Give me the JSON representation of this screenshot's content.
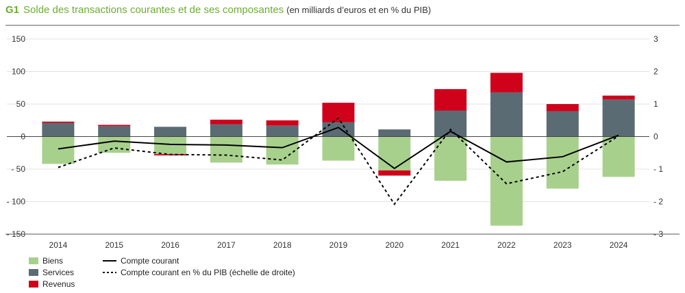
{
  "header": {
    "fig_num": "G1",
    "title": "Solde des transactions courantes et de ses composantes",
    "subtitle": "(en milliards d’euros et en % du PIB)"
  },
  "chart_data": {
    "type": "bar",
    "stacked": true,
    "categories": [
      "2014",
      "2015",
      "2016",
      "2017",
      "2018",
      "2019",
      "2020",
      "2021",
      "2022",
      "2023",
      "2024"
    ],
    "series": [
      {
        "name": "Biens",
        "color": "#a8d08d",
        "kind": "bar",
        "values": [
          -42,
          -25,
          -27,
          -40,
          -43,
          -37,
          -52,
          -68,
          -137,
          -80,
          -62
        ]
      },
      {
        "name": "Services",
        "color": "#5b6b73",
        "kind": "bar",
        "values": [
          21,
          16,
          15,
          19,
          17,
          22,
          11,
          40,
          68,
          39,
          57
        ]
      },
      {
        "name": "Revenus",
        "color": "#d0021b",
        "kind": "bar",
        "values": [
          2,
          2,
          -2,
          7,
          8,
          30,
          -8,
          33,
          30,
          11,
          6
        ]
      },
      {
        "name": "Compte courant",
        "color": "#000000",
        "kind": "line",
        "axis": "left",
        "values": [
          -19,
          -7,
          -12,
          -13,
          -17,
          14,
          -49,
          8,
          -39,
          -31,
          2
        ]
      },
      {
        "name": "Compte courant en % du PIB (échelle de droite)",
        "color": "#000000",
        "kind": "dashed-line",
        "axis": "right",
        "values": [
          -0.95,
          -0.35,
          -0.55,
          -0.57,
          -0.72,
          0.57,
          -2.08,
          0.22,
          -1.45,
          -1.08,
          0.02
        ]
      }
    ],
    "ylim": [
      -150,
      150
    ],
    "y_ticks": [
      150,
      100,
      50,
      0,
      -50,
      -100,
      -150
    ],
    "y_tick_labels": [
      "150",
      "100",
      "50",
      "0",
      "- 50",
      "- 100",
      "- 150"
    ],
    "y2lim": [
      -3,
      3
    ],
    "y2_ticks": [
      3,
      2,
      1,
      0,
      -1,
      -2,
      -3
    ],
    "y2_tick_labels": [
      "3",
      "2",
      "1",
      "0",
      "- 1",
      "- 2",
      "- 3"
    ],
    "legend_position": "bottom-left",
    "legend": {
      "col1": [
        "Biens",
        "Services",
        "Revenus"
      ],
      "col2": [
        "Compte courant",
        "Compte courant en % du PIB (échelle de droite)"
      ]
    }
  }
}
